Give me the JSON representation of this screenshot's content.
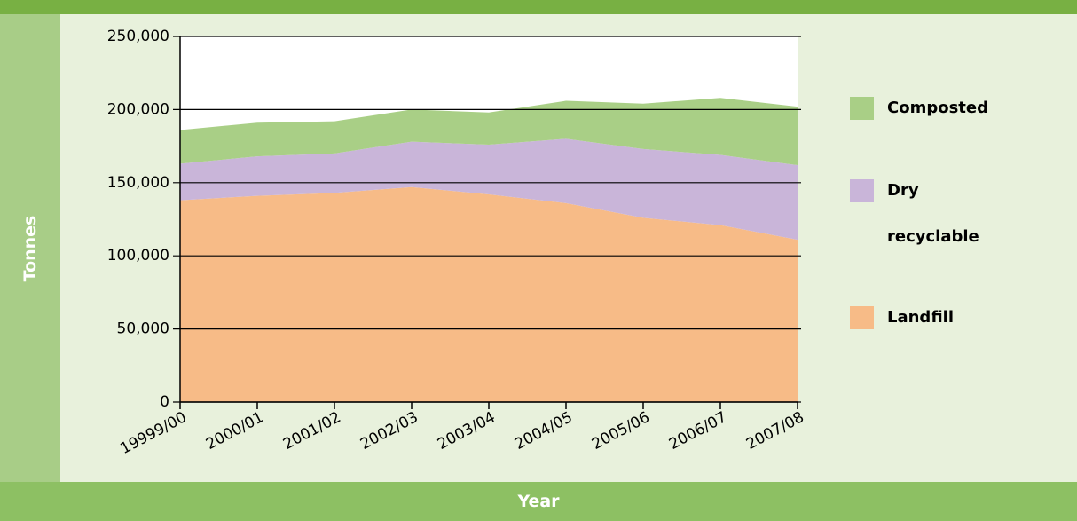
{
  "chart_data": {
    "type": "stacked_area",
    "x_label": "Year",
    "y_label": "Tonnes",
    "categories": [
      "19999/00",
      "2000/01",
      "2001/02",
      "2002/03",
      "2003/04",
      "2004/05",
      "2005/06",
      "2006/07",
      "2007/08"
    ],
    "series": [
      {
        "name": "Landfill",
        "color": "#f7bb87",
        "values": [
          138000,
          141000,
          143000,
          147000,
          142000,
          136000,
          126000,
          121000,
          111000
        ]
      },
      {
        "name": "Dry recyclable",
        "color": "#c9b5d9",
        "values": [
          25000,
          27000,
          27000,
          31000,
          34000,
          44000,
          47000,
          48000,
          51000
        ]
      },
      {
        "name": "Composted",
        "color": "#a9cf86",
        "values": [
          23000,
          23000,
          22000,
          22000,
          22000,
          26000,
          31000,
          39000,
          40000
        ]
      }
    ],
    "ylim": [
      0,
      250000
    ],
    "yticks": [
      0,
      {
        "value": 50000,
        "label": "50,000"
      },
      {
        "value": 100000,
        "label": "100,000"
      },
      {
        "value": 150000,
        "label": "150,000"
      },
      {
        "value": 200000,
        "label": "200,000"
      },
      {
        "value": 250000,
        "label": "250,000"
      }
    ],
    "grid": true,
    "legend": "right"
  }
}
